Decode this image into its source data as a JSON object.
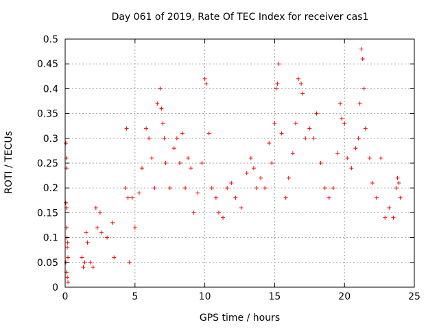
{
  "chart_data": {
    "type": "scatter",
    "title": "Day 061 of 2019, Rate Of TEC Index for receiver cas1",
    "xlabel": "GPS time / hours",
    "ylabel": "ROTI / TECUs",
    "xlim": [
      0,
      25
    ],
    "ylim": [
      0,
      0.5
    ],
    "xticks": [
      "0",
      "5",
      "10",
      "15",
      "20",
      "25"
    ],
    "yticks": [
      "0",
      "0.05",
      "0.1",
      "0.15",
      "0.2",
      "0.25",
      "0.3",
      "0.35",
      "0.4",
      "0.45",
      "0.5"
    ],
    "grid": true,
    "marker": "+",
    "marker_color": "#ff0000",
    "series": [
      {
        "name": "ROTI",
        "note": "dense scatter; representative sample of plotted points (hours, TECU)",
        "points": [
          [
            0.05,
            0.29
          ],
          [
            0.08,
            0.26
          ],
          [
            0.1,
            0.24
          ],
          [
            0.05,
            0.17
          ],
          [
            0.1,
            0.16
          ],
          [
            0.1,
            0.12
          ],
          [
            0.15,
            0.08
          ],
          [
            0.05,
            0.05
          ],
          [
            0.1,
            0.03
          ],
          [
            0.2,
            0.06
          ],
          [
            0.15,
            0.02
          ],
          [
            0.2,
            0.01
          ],
          [
            0.12,
            0.1
          ],
          [
            0.18,
            0.09
          ],
          [
            1.2,
            0.06
          ],
          [
            1.3,
            0.04
          ],
          [
            1.4,
            0.05
          ],
          [
            1.5,
            0.11
          ],
          [
            1.6,
            0.09
          ],
          [
            1.8,
            0.05
          ],
          [
            2.0,
            0.04
          ],
          [
            2.2,
            0.16
          ],
          [
            2.3,
            0.12
          ],
          [
            2.5,
            0.15
          ],
          [
            2.6,
            0.11
          ],
          [
            3.0,
            0.1
          ],
          [
            3.4,
            0.13
          ],
          [
            3.5,
            0.06
          ],
          [
            4.3,
            0.2
          ],
          [
            4.4,
            0.32
          ],
          [
            4.5,
            0.18
          ],
          [
            4.6,
            0.05
          ],
          [
            4.8,
            0.18
          ],
          [
            5.0,
            0.12
          ],
          [
            5.3,
            0.19
          ],
          [
            5.5,
            0.24
          ],
          [
            5.8,
            0.32
          ],
          [
            6.0,
            0.3
          ],
          [
            6.2,
            0.26
          ],
          [
            6.4,
            0.2
          ],
          [
            6.6,
            0.37
          ],
          [
            6.8,
            0.4
          ],
          [
            6.9,
            0.36
          ],
          [
            7.0,
            0.33
          ],
          [
            7.1,
            0.3
          ],
          [
            7.2,
            0.25
          ],
          [
            7.5,
            0.2
          ],
          [
            7.8,
            0.28
          ],
          [
            8.0,
            0.3
          ],
          [
            8.2,
            0.25
          ],
          [
            8.4,
            0.31
          ],
          [
            8.6,
            0.2
          ],
          [
            8.8,
            0.26
          ],
          [
            9.0,
            0.24
          ],
          [
            9.2,
            0.15
          ],
          [
            9.5,
            0.19
          ],
          [
            9.8,
            0.25
          ],
          [
            10.0,
            0.42
          ],
          [
            10.1,
            0.41
          ],
          [
            10.3,
            0.31
          ],
          [
            10.5,
            0.2
          ],
          [
            10.8,
            0.18
          ],
          [
            11.0,
            0.15
          ],
          [
            11.3,
            0.14
          ],
          [
            11.6,
            0.2
          ],
          [
            11.9,
            0.21
          ],
          [
            12.2,
            0.18
          ],
          [
            12.6,
            0.16
          ],
          [
            13.0,
            0.23
          ],
          [
            13.3,
            0.26
          ],
          [
            13.5,
            0.24
          ],
          [
            13.7,
            0.2
          ],
          [
            14.0,
            0.22
          ],
          [
            14.3,
            0.2
          ],
          [
            14.6,
            0.29
          ],
          [
            14.8,
            0.25
          ],
          [
            15.0,
            0.33
          ],
          [
            15.1,
            0.4
          ],
          [
            15.2,
            0.41
          ],
          [
            15.3,
            0.45
          ],
          [
            15.5,
            0.31
          ],
          [
            15.8,
            0.18
          ],
          [
            16.0,
            0.22
          ],
          [
            16.3,
            0.27
          ],
          [
            16.5,
            0.33
          ],
          [
            16.7,
            0.42
          ],
          [
            16.9,
            0.41
          ],
          [
            17.0,
            0.39
          ],
          [
            17.2,
            0.3
          ],
          [
            17.5,
            0.32
          ],
          [
            17.8,
            0.3
          ],
          [
            18.0,
            0.35
          ],
          [
            18.3,
            0.25
          ],
          [
            18.6,
            0.2
          ],
          [
            18.9,
            0.18
          ],
          [
            19.2,
            0.2
          ],
          [
            19.5,
            0.27
          ],
          [
            19.7,
            0.37
          ],
          [
            19.8,
            0.34
          ],
          [
            20.0,
            0.33
          ],
          [
            20.2,
            0.26
          ],
          [
            20.5,
            0.24
          ],
          [
            20.8,
            0.28
          ],
          [
            21.0,
            0.3
          ],
          [
            21.1,
            0.37
          ],
          [
            21.2,
            0.48
          ],
          [
            21.3,
            0.46
          ],
          [
            21.4,
            0.4
          ],
          [
            21.5,
            0.32
          ],
          [
            21.8,
            0.26
          ],
          [
            22.0,
            0.21
          ],
          [
            22.3,
            0.18
          ],
          [
            22.6,
            0.26
          ],
          [
            22.9,
            0.14
          ],
          [
            23.2,
            0.16
          ],
          [
            23.5,
            0.14
          ],
          [
            23.7,
            0.2
          ],
          [
            23.8,
            0.22
          ],
          [
            23.9,
            0.21
          ],
          [
            24.0,
            0.18
          ]
        ]
      }
    ]
  }
}
